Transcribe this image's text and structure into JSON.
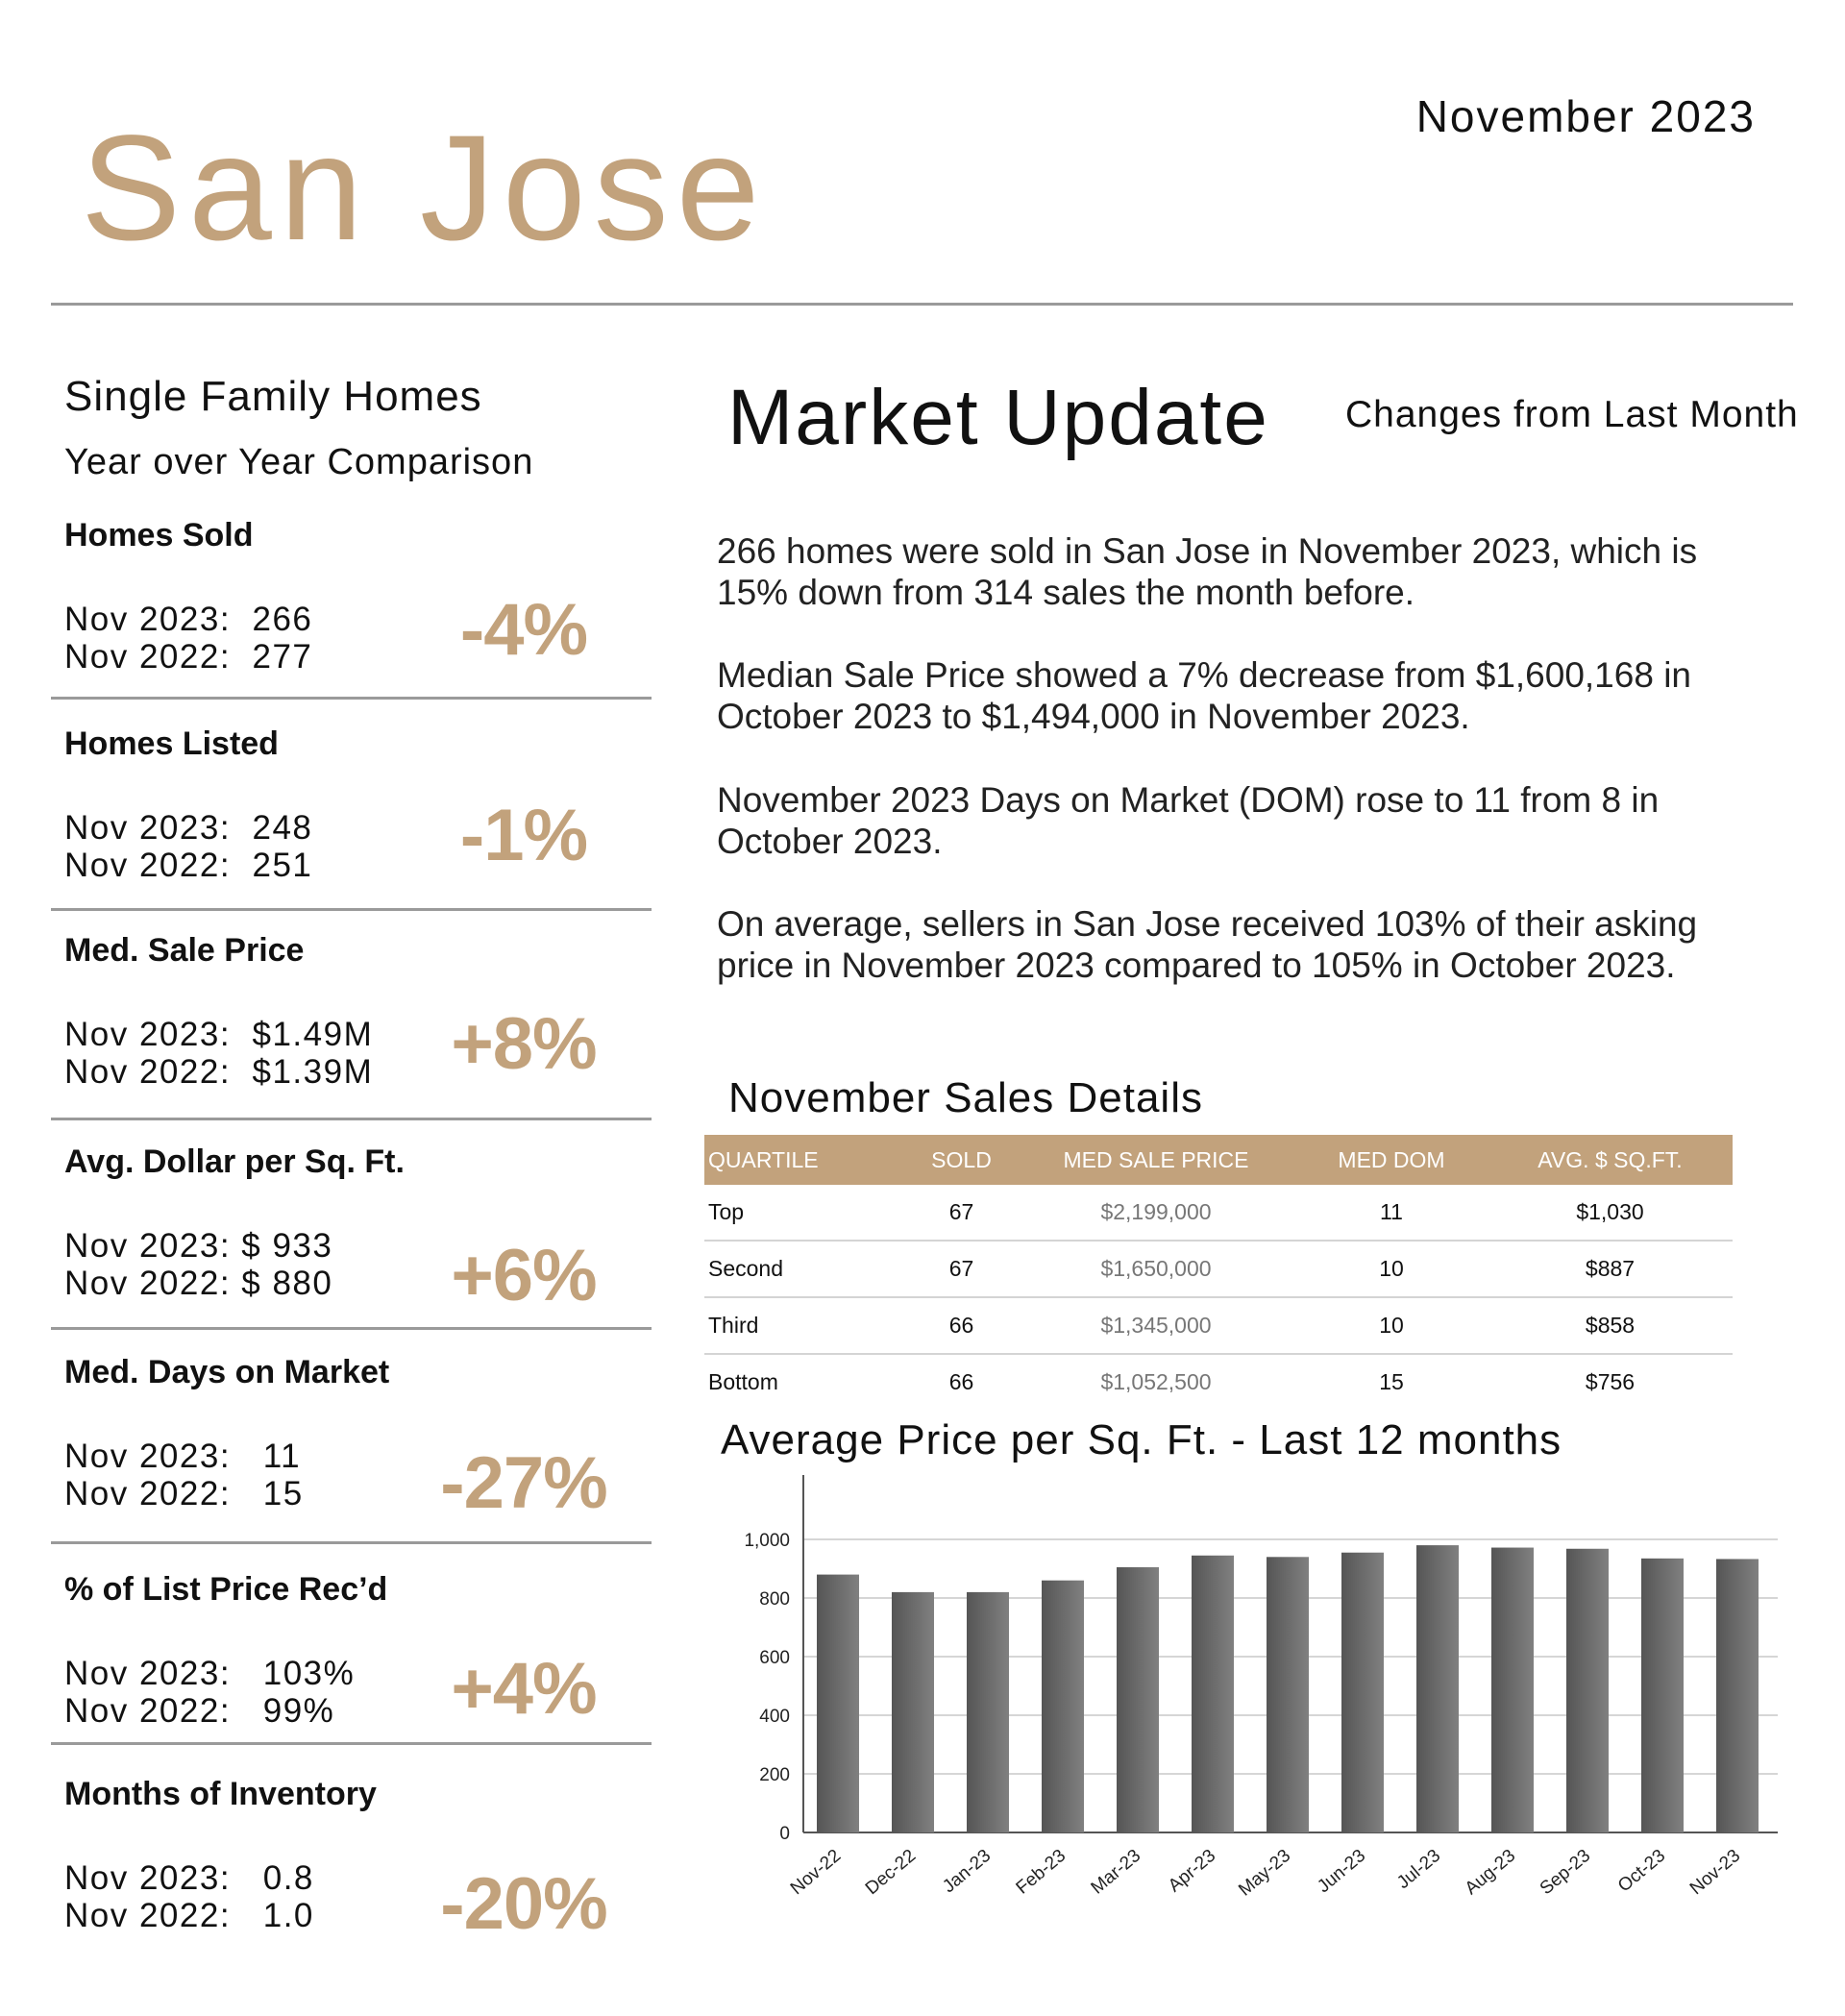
{
  "header": {
    "city": "San Jose",
    "month": "November 2023"
  },
  "left": {
    "title": "Single Family Homes",
    "subtitle": "Year over Year Comparison",
    "metrics": [
      {
        "label": "Homes Sold",
        "line1": "Nov 2023:  266",
        "line2": "Nov 2022:  277",
        "change": "-4%"
      },
      {
        "label": "Homes Listed",
        "line1": "Nov 2023:  248",
        "line2": "Nov 2022:  251",
        "change": "-1%"
      },
      {
        "label": "Med. Sale Price",
        "line1": "Nov 2023:  $1.49M",
        "line2": "Nov 2022:  $1.39M",
        "change": "+8%"
      },
      {
        "label": "Avg. Dollar per Sq. Ft.",
        "line1": "Nov 2023: $ 933",
        "line2": "Nov 2022: $ 880",
        "change": "+6%"
      },
      {
        "label": "Med. Days on Market",
        "line1": "Nov 2023:   11",
        "line2": "Nov 2022:   15",
        "change": "-27%"
      },
      {
        "label": "% of List Price Rec’d",
        "line1": "Nov 2023:   103%",
        "line2": "Nov 2022:   99%",
        "change": "+4%"
      },
      {
        "label": "Months of Inventory",
        "line1": "Nov 2023:   0.8",
        "line2": "Nov 2022:   1.0",
        "change": "-20%"
      }
    ]
  },
  "market": {
    "title": "Market Update",
    "changes_label": "Changes from Last Month",
    "paragraphs": [
      "266 homes were sold in San Jose in November 2023, which is 15% down from 314 sales the month before.",
      "Median Sale Price showed a 7% decrease from $1,600,168 in October 2023 to $1,494,000 in November 2023.",
      "November 2023 Days on Market (DOM) rose to 11 from 8 in October 2023.",
      "On average, sellers in San Jose received 103% of their asking price in November 2023 compared to 105% in October 2023."
    ]
  },
  "sales_details": {
    "title": "November Sales Details",
    "columns": [
      "QUARTILE",
      "SOLD",
      "MED SALE PRICE",
      "MED DOM",
      "AVG. $ SQ.FT."
    ],
    "rows": [
      [
        "Top",
        "67",
        "$2,199,000",
        "11",
        "$1,030"
      ],
      [
        "Second",
        "67",
        "$1,650,000",
        "10",
        "$887"
      ],
      [
        "Third",
        "66",
        "$1,345,000",
        "10",
        "$858"
      ],
      [
        "Bottom",
        "66",
        "$1,052,500",
        "15",
        "$756"
      ]
    ]
  },
  "chart_data": {
    "type": "bar",
    "title": "Average Price per Sq. Ft. - Last 12 months",
    "categories": [
      "Nov-22",
      "Dec-22",
      "Jan-23",
      "Feb-23",
      "Mar-23",
      "Apr-23",
      "May-23",
      "Jun-23",
      "Jul-23",
      "Aug-23",
      "Sep-23",
      "Oct-23",
      "Nov-23"
    ],
    "values": [
      880,
      820,
      820,
      860,
      905,
      945,
      940,
      955,
      980,
      972,
      968,
      935,
      933
    ],
    "ylim": [
      0,
      1000
    ],
    "yticks": [
      0,
      200,
      400,
      600,
      800,
      1000
    ],
    "ytick_labels": [
      "0",
      "200",
      "400",
      "600",
      "800",
      "1,000"
    ],
    "grid": true,
    "bar_color": "#6b6b6b"
  }
}
